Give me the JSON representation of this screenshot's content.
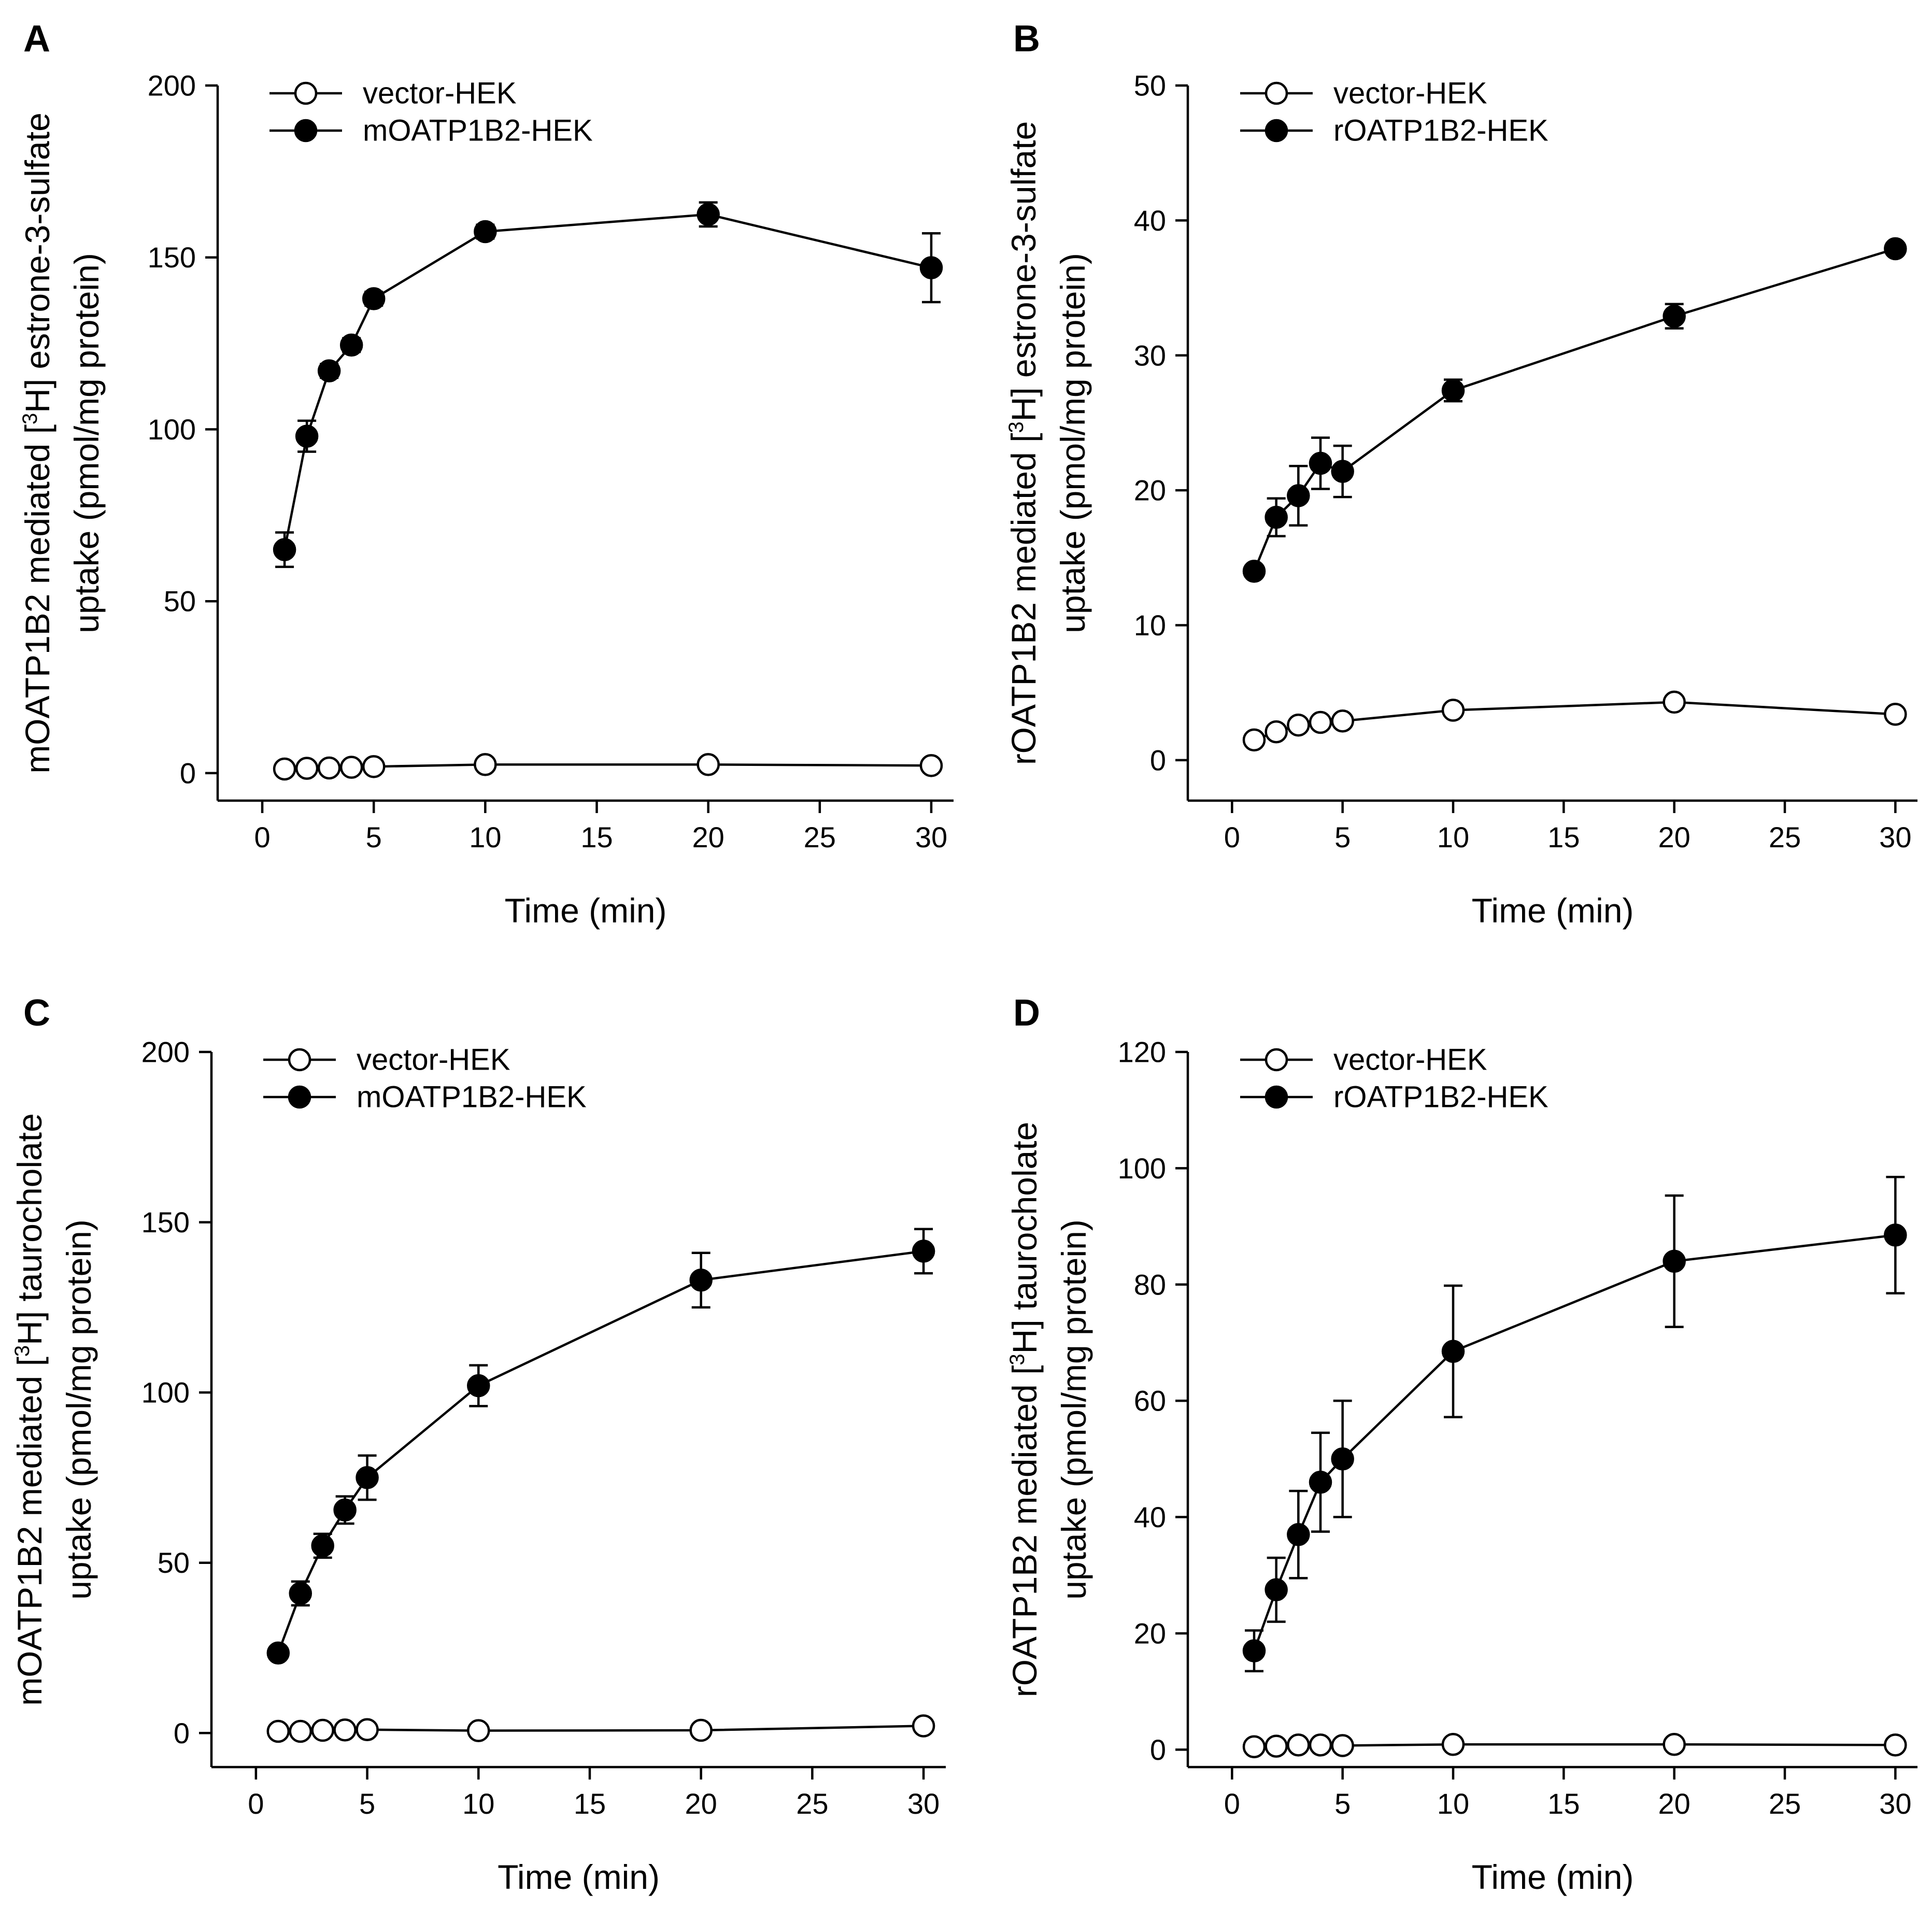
{
  "chart_data": [
    {
      "panel_label": "A",
      "type": "line",
      "xlabel": "Time (min)",
      "ylabel_pre": "mOATP1B2 mediated [",
      "ylabel_sup": "3",
      "ylabel_post": "H] estrone-3-sulfate",
      "ylabel_line2": "uptake (pmol/mg protein)",
      "xlim": [
        -2,
        31
      ],
      "ylim": [
        -8,
        200
      ],
      "xticks": [
        0,
        5,
        10,
        15,
        20,
        25,
        30
      ],
      "xtick_labels": [
        "0",
        "5",
        "10",
        "15",
        "20",
        "25",
        "30"
      ],
      "yticks": [
        0,
        50,
        100,
        150,
        200
      ],
      "ytick_labels": [
        "0",
        "50",
        "100",
        "150",
        "200"
      ],
      "series": [
        {
          "name": "vector-HEK",
          "marker": "open-circle",
          "x": [
            1,
            2,
            3,
            4,
            5,
            10,
            20,
            30
          ],
          "y": [
            1.2,
            1.4,
            1.5,
            1.7,
            1.9,
            2.5,
            2.5,
            2.2
          ],
          "err": [
            0,
            0,
            0,
            0,
            0,
            0,
            0,
            0
          ]
        },
        {
          "name": "mOATP1B2-HEK",
          "marker": "filled-circle",
          "x": [
            1,
            2,
            3,
            4,
            5,
            10,
            20,
            30
          ],
          "y": [
            65,
            98,
            117,
            124.5,
            138,
            157.5,
            162.5,
            147
          ],
          "err": [
            5,
            4.5,
            2,
            2,
            2,
            2,
            3.5,
            10
          ]
        }
      ]
    },
    {
      "panel_label": "B",
      "type": "line",
      "xlabel": "Time (min)",
      "ylabel_pre": "rOATP1B2 mediated [",
      "ylabel_sup": "3",
      "ylabel_post": "H] estrone-3-sulfate",
      "ylabel_line2": "uptake (pmol/mg protein)",
      "xlim": [
        -2,
        31
      ],
      "ylim": [
        -3,
        50
      ],
      "xticks": [
        0,
        5,
        10,
        15,
        20,
        25,
        30
      ],
      "xtick_labels": [
        "0",
        "5",
        "10",
        "15",
        "20",
        "25",
        "30"
      ],
      "yticks": [
        0,
        10,
        20,
        30,
        40,
        50
      ],
      "ytick_labels": [
        "0",
        "10",
        "20",
        "30",
        "40",
        "50"
      ],
      "series": [
        {
          "name": "vector-HEK",
          "marker": "open-circle",
          "x": [
            1,
            2,
            3,
            4,
            5,
            10,
            20,
            30
          ],
          "y": [
            1.5,
            2.1,
            2.6,
            2.8,
            2.9,
            3.7,
            4.3,
            3.4
          ],
          "err": [
            0,
            0,
            0,
            0,
            0,
            0,
            0,
            0
          ]
        },
        {
          "name": "rOATP1B2-HEK",
          "marker": "filled-circle",
          "x": [
            1,
            2,
            3,
            4,
            5,
            10,
            20,
            30
          ],
          "y": [
            14,
            18,
            19.6,
            22,
            21.4,
            27.4,
            32.9,
            37.9
          ],
          "err": [
            0.4,
            1.4,
            2.2,
            1.9,
            1.9,
            0.8,
            0.9,
            0.4
          ]
        }
      ]
    },
    {
      "panel_label": "C",
      "type": "line",
      "xlabel": "Time (min)",
      "ylabel_pre": "mOATP1B2 mediated [",
      "ylabel_sup": "3",
      "ylabel_post": "H] taurocholate",
      "ylabel_line2": "uptake (pmol/mg protein)",
      "xlim": [
        -2,
        31
      ],
      "ylim": [
        -10,
        200
      ],
      "xticks": [
        0,
        5,
        10,
        15,
        20,
        25,
        30
      ],
      "xtick_labels": [
        "0",
        "5",
        "10",
        "15",
        "20",
        "25",
        "30"
      ],
      "yticks": [
        0,
        50,
        100,
        150,
        200
      ],
      "ytick_labels": [
        "0",
        "50",
        "100",
        "150",
        "200"
      ],
      "series": [
        {
          "name": "vector-HEK",
          "marker": "open-circle",
          "x": [
            1,
            2,
            3,
            4,
            5,
            10,
            20,
            30
          ],
          "y": [
            0.5,
            0.5,
            0.8,
            0.9,
            1.0,
            0.7,
            0.8,
            2.1
          ],
          "err": [
            0,
            0,
            0,
            0,
            0,
            0,
            0,
            0
          ]
        },
        {
          "name": "mOATP1B2-HEK",
          "marker": "filled-circle",
          "x": [
            1,
            2,
            3,
            4,
            5,
            10,
            20,
            30
          ],
          "y": [
            23.5,
            41,
            55,
            65.5,
            75,
            102,
            133,
            141.5
          ],
          "err": [
            1.5,
            3.5,
            3.5,
            4,
            6.5,
            6,
            8,
            6.5
          ]
        }
      ]
    },
    {
      "panel_label": "D",
      "type": "line",
      "xlabel": "Time (min)",
      "ylabel_pre": "rOATP1B2 mediated [",
      "ylabel_sup": "3",
      "ylabel_post": "H] taurocholate",
      "ylabel_line2": "uptake (pmol/mg protein)",
      "xlim": [
        -2,
        31
      ],
      "ylim": [
        -3,
        120
      ],
      "xticks": [
        0,
        5,
        10,
        15,
        20,
        25,
        30
      ],
      "xtick_labels": [
        "0",
        "5",
        "10",
        "15",
        "20",
        "25",
        "30"
      ],
      "yticks": [
        0,
        20,
        40,
        60,
        80,
        100,
        120
      ],
      "ytick_labels": [
        "0",
        "20",
        "40",
        "60",
        "80",
        "100",
        "120"
      ],
      "series": [
        {
          "name": "vector-HEK",
          "marker": "open-circle",
          "x": [
            1,
            2,
            3,
            4,
            5,
            10,
            20,
            30
          ],
          "y": [
            0.5,
            0.6,
            0.8,
            0.8,
            0.7,
            0.9,
            0.9,
            0.8
          ],
          "err": [
            0,
            0,
            0,
            0,
            0,
            0,
            0,
            0
          ]
        },
        {
          "name": "rOATP1B2-HEK",
          "marker": "filled-circle",
          "x": [
            1,
            2,
            3,
            4,
            5,
            10,
            20,
            30
          ],
          "y": [
            17,
            27.5,
            37,
            46,
            50,
            68.5,
            84,
            88.5
          ],
          "err": [
            3.5,
            5.5,
            7.5,
            8.5,
            10,
            11.3,
            11.3,
            10
          ]
        }
      ]
    }
  ]
}
